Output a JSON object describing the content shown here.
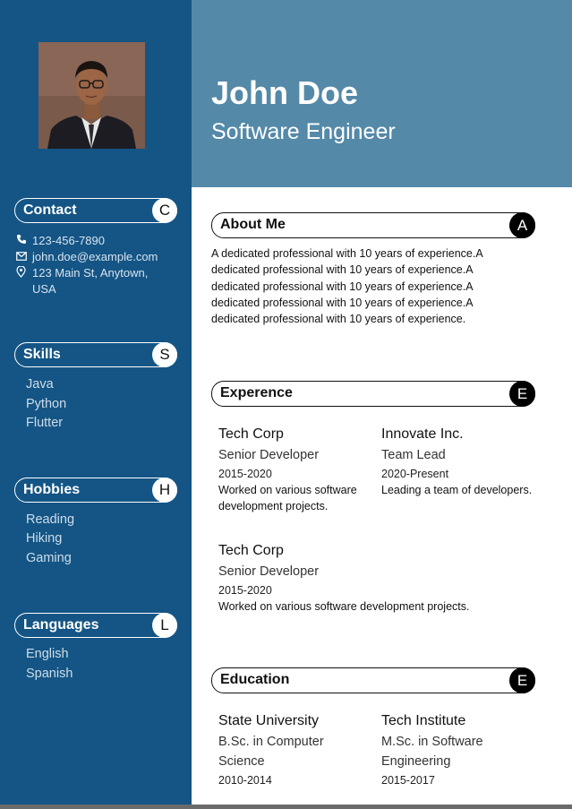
{
  "header": {
    "name": "John Doe",
    "title": "Software Engineer"
  },
  "colors": {
    "sidebar": "#145585",
    "header": "#5489a8",
    "accent_dark": "#000000"
  },
  "sidebar": {
    "contact": {
      "heading": "Contact",
      "badge": "C",
      "phone": "123-456-7890",
      "email": "john.doe@example.com",
      "address_line1": "123 Main St, Anytown,",
      "address_line2": "USA",
      "icons": [
        "phone-icon",
        "mail-icon",
        "location-pin-icon"
      ]
    },
    "skills": {
      "heading": "Skills",
      "badge": "S",
      "items": [
        "Java",
        "Python",
        "Flutter"
      ]
    },
    "hobbies": {
      "heading": "Hobbies",
      "badge": "H",
      "items": [
        "Reading",
        "Hiking",
        "Gaming"
      ]
    },
    "languages": {
      "heading": "Languages",
      "badge": "L",
      "items": [
        "English",
        "Spanish"
      ]
    }
  },
  "about": {
    "heading": "About Me",
    "badge": "A",
    "text": "A dedicated professional with 10 years of experience.A dedicated professional with 10 years of experience.A dedicated professional with 10 years of experience.A dedicated professional with 10 years of experience.A dedicated professional with 10 years of experience."
  },
  "experience": {
    "heading": "Experence",
    "badge": "E",
    "items": [
      {
        "company": "Tech Corp",
        "role": "Senior Developer",
        "dates": "2015-2020",
        "description": "Worked on various software development projects."
      },
      {
        "company": "Innovate Inc.",
        "role": "Team Lead",
        "dates": "2020-Present",
        "description": "Leading a team of developers."
      },
      {
        "company": "Tech Corp",
        "role": "Senior Developer",
        "dates": "2015-2020",
        "description": "Worked on various software development projects."
      }
    ]
  },
  "education": {
    "heading": "Education",
    "badge": "E",
    "items": [
      {
        "school": "State University",
        "degree": "B.Sc. in Computer Science",
        "dates": "2010-2014"
      },
      {
        "school": "Tech Institute",
        "degree": "M.Sc. in Software Engineering",
        "dates": "2015-2017"
      }
    ]
  }
}
